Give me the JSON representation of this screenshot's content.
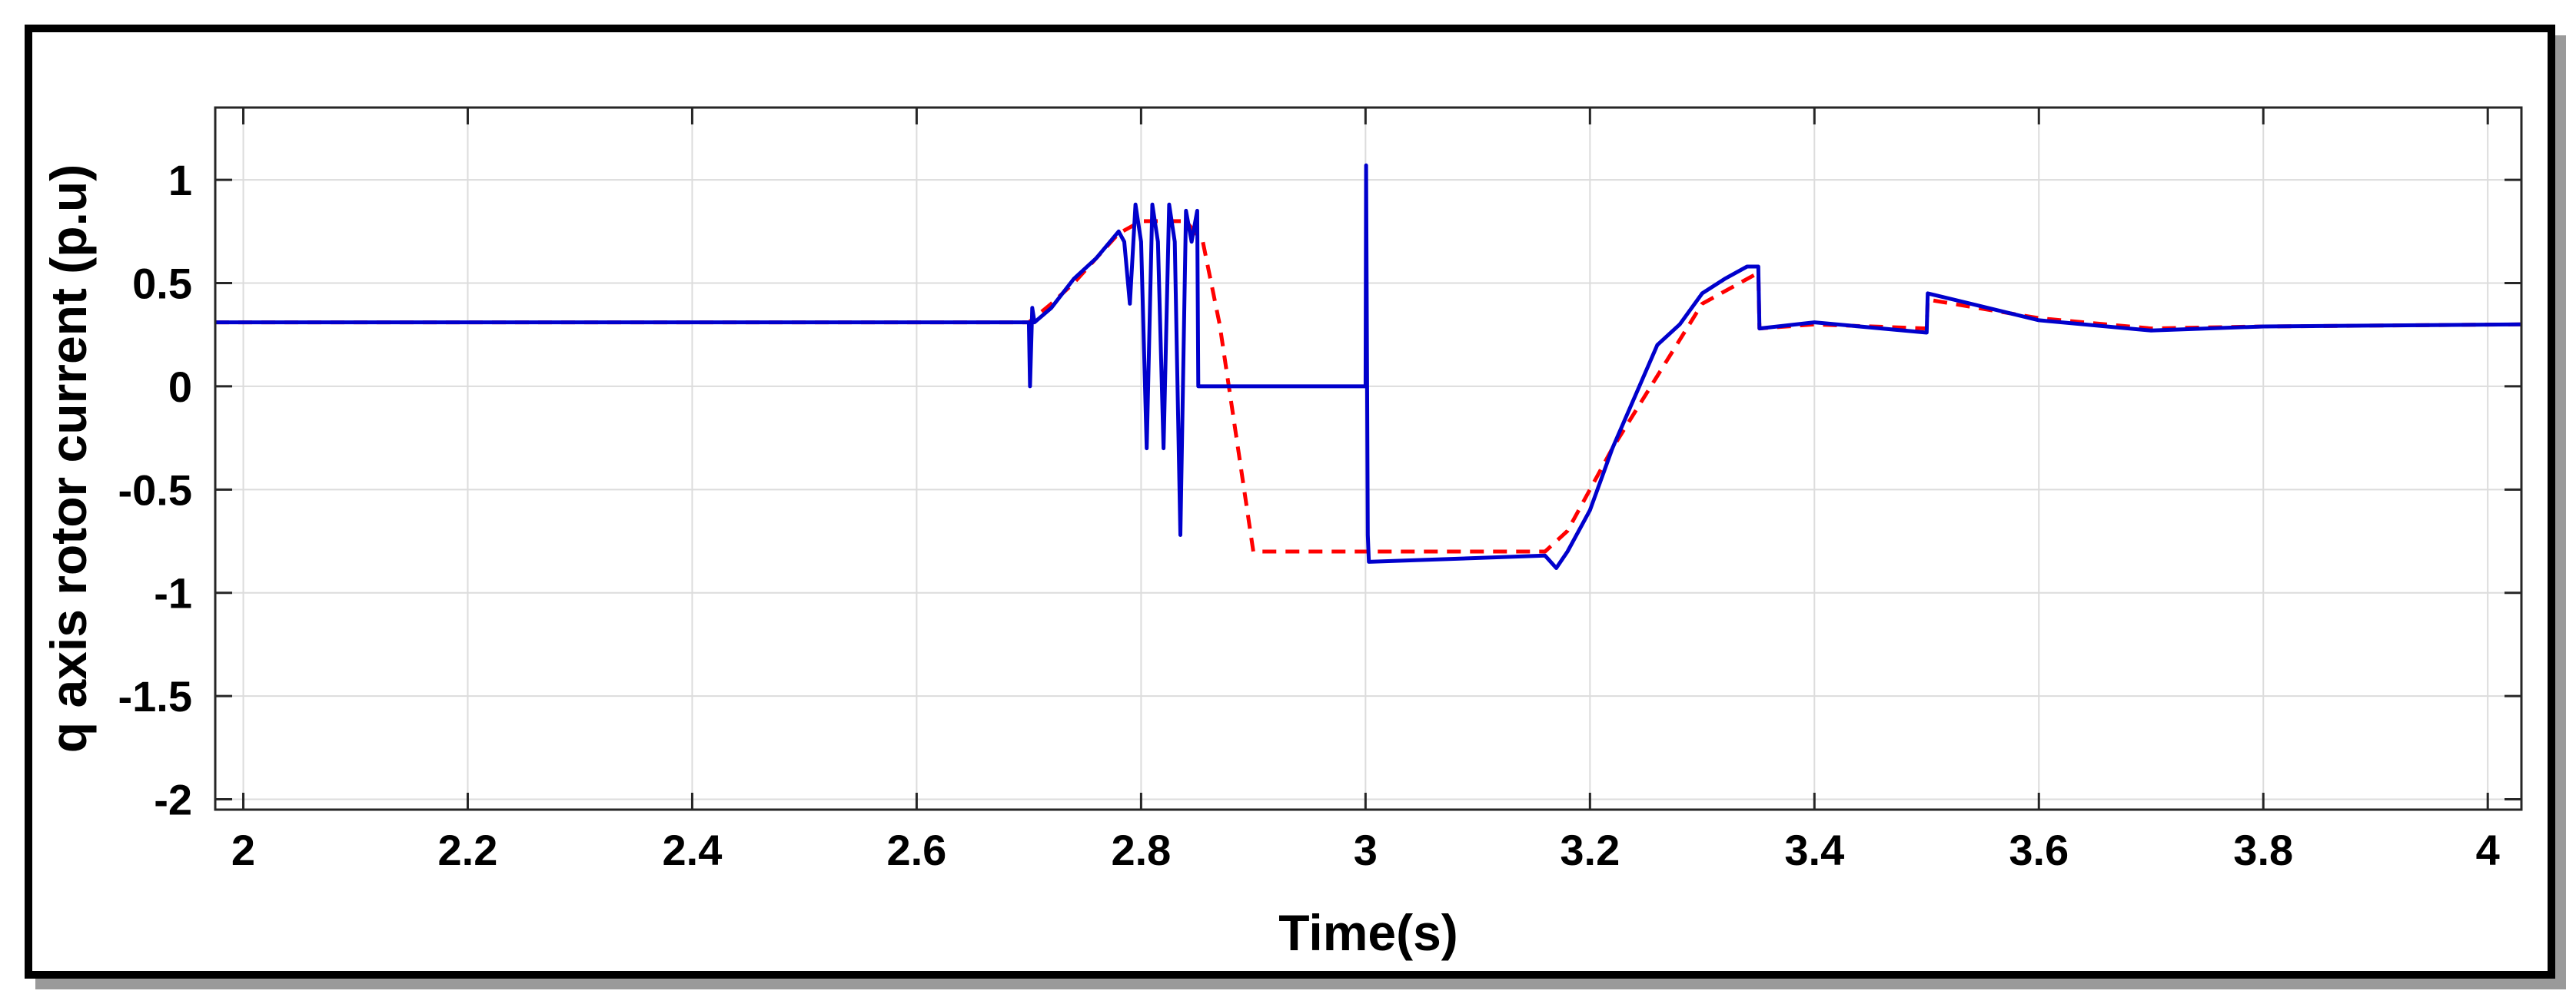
{
  "chart_data": {
    "type": "line",
    "xlabel": "Time(s)",
    "ylabel": "q axis rotor current (p.u)",
    "xlim": [
      1.975,
      4.03
    ],
    "ylim": [
      -2.05,
      1.35
    ],
    "x_ticks": [
      2,
      2.2,
      2.4,
      2.6,
      2.8,
      3,
      3.2,
      3.4,
      3.6,
      3.8,
      4
    ],
    "x_tick_labels": [
      "2",
      "2.2",
      "2.4",
      "2.6",
      "2.8",
      "3",
      "3.2",
      "3.4",
      "3.6",
      "3.8",
      "4"
    ],
    "y_ticks": [
      1,
      0.5,
      0,
      -0.5,
      -1,
      -1.5,
      -2
    ],
    "y_tick_labels": [
      "1",
      "0.5",
      "0",
      "-0.5",
      "-1",
      "-1.5",
      "-2"
    ],
    "grid": true,
    "legend": "none",
    "series": [
      {
        "color": "#ff0000",
        "style": "dashed",
        "x": [
          1.975,
          2.7,
          2.72,
          2.74,
          2.76,
          2.78,
          2.8,
          2.84,
          2.855,
          2.87,
          2.9,
          3.0,
          3.16,
          3.18,
          3.22,
          3.26,
          3.3,
          3.35,
          3.351,
          3.4,
          3.5,
          3.501,
          3.6,
          3.7,
          3.8,
          4.03
        ],
        "y": [
          0.31,
          0.31,
          0.4,
          0.5,
          0.62,
          0.74,
          0.8,
          0.8,
          0.7,
          0.3,
          -0.8,
          -0.8,
          -0.8,
          -0.7,
          -0.3,
          0.05,
          0.4,
          0.55,
          0.28,
          0.3,
          0.28,
          0.42,
          0.33,
          0.28,
          0.29,
          0.3
        ]
      },
      {
        "color": "#0000cc",
        "style": "solid",
        "x": [
          1.975,
          2.7,
          2.701,
          2.703,
          2.705,
          2.72,
          2.74,
          2.76,
          2.78,
          2.785,
          2.79,
          2.795,
          2.8,
          2.805,
          2.81,
          2.815,
          2.82,
          2.825,
          2.83,
          2.835,
          2.84,
          2.845,
          2.85,
          2.851,
          3.0,
          3.0005,
          3.002,
          3.003,
          3.16,
          3.17,
          3.18,
          3.2,
          3.22,
          3.24,
          3.26,
          3.28,
          3.3,
          3.32,
          3.34,
          3.35,
          3.351,
          3.4,
          3.5,
          3.501,
          3.6,
          3.7,
          3.8,
          4.03
        ],
        "y": [
          0.31,
          0.31,
          0.0,
          0.38,
          0.31,
          0.38,
          0.52,
          0.62,
          0.75,
          0.7,
          0.4,
          0.88,
          0.7,
          -0.3,
          0.88,
          0.7,
          -0.3,
          0.88,
          0.7,
          -0.72,
          0.85,
          0.7,
          0.85,
          0.0,
          0.0,
          1.07,
          -0.72,
          -0.85,
          -0.82,
          -0.88,
          -0.8,
          -0.6,
          -0.3,
          -0.05,
          0.2,
          0.3,
          0.45,
          0.52,
          0.58,
          0.58,
          0.28,
          0.31,
          0.26,
          0.45,
          0.32,
          0.27,
          0.29,
          0.3
        ]
      }
    ]
  }
}
